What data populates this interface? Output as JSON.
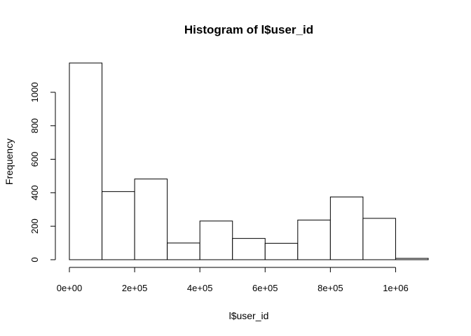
{
  "chart_data": {
    "type": "bar",
    "title": "Histogram of l$user_id",
    "xlabel": "l$user_id",
    "ylabel": "Frequency",
    "bins": [
      {
        "start": 0,
        "end": 100000,
        "count": 1175
      },
      {
        "start": 100000,
        "end": 200000,
        "count": 407
      },
      {
        "start": 200000,
        "end": 300000,
        "count": 482
      },
      {
        "start": 300000,
        "end": 400000,
        "count": 100
      },
      {
        "start": 400000,
        "end": 500000,
        "count": 231
      },
      {
        "start": 500000,
        "end": 600000,
        "count": 127
      },
      {
        "start": 600000,
        "end": 700000,
        "count": 98
      },
      {
        "start": 700000,
        "end": 800000,
        "count": 237
      },
      {
        "start": 800000,
        "end": 900000,
        "count": 375
      },
      {
        "start": 900000,
        "end": 1000000,
        "count": 247
      },
      {
        "start": 1000000,
        "end": 1100000,
        "count": 8
      }
    ],
    "xlim": [
      0,
      1100000
    ],
    "ylim": [
      0,
      1175
    ],
    "x_ticks": [
      {
        "value": 0,
        "label": "0e+00"
      },
      {
        "value": 200000,
        "label": "2e+05"
      },
      {
        "value": 400000,
        "label": "4e+05"
      },
      {
        "value": 600000,
        "label": "6e+05"
      },
      {
        "value": 800000,
        "label": "8e+05"
      },
      {
        "value": 1000000,
        "label": "1e+06"
      }
    ],
    "y_ticks": [
      {
        "value": 0,
        "label": "0"
      },
      {
        "value": 200,
        "label": "200"
      },
      {
        "value": 400,
        "label": "400"
      },
      {
        "value": 600,
        "label": "600"
      },
      {
        "value": 800,
        "label": "800"
      },
      {
        "value": 1000,
        "label": "1000"
      }
    ],
    "grid": false,
    "legend": "none"
  }
}
